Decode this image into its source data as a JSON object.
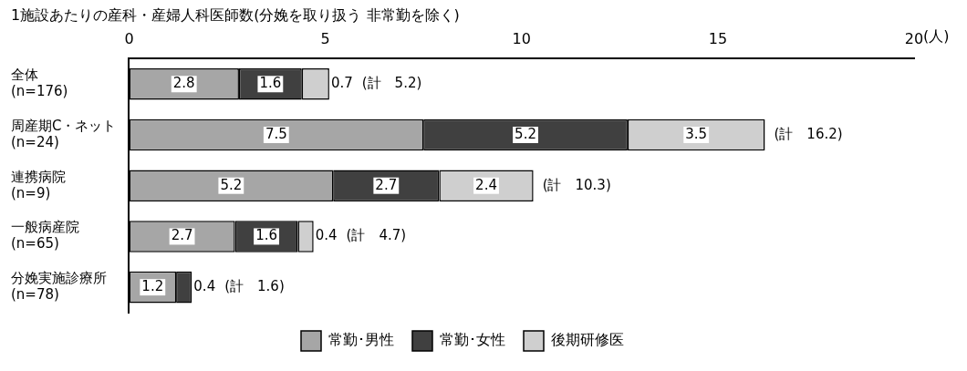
{
  "chart_data": {
    "type": "bar",
    "orientation": "horizontal",
    "stacked": true,
    "title": "1施設あたりの産科・産婦人科医師数(分娩を取り扱う 非常勤を除く)",
    "xlabel": "(人)",
    "categories": [
      "全体\n(n=176)",
      "周産期C・ネット\n(n=24)",
      "連携病院\n(n=9)",
      "一般病産院\n(n=65)",
      "分娩実施診療所\n(n=78)"
    ],
    "series": [
      {
        "name": "常勤･男性",
        "color": "#a6a6a6",
        "values": [
          2.8,
          7.5,
          5.2,
          2.7,
          1.2
        ]
      },
      {
        "name": "常勤･女性",
        "color": "#404040",
        "values": [
          1.6,
          5.2,
          2.7,
          1.6,
          0.4
        ]
      },
      {
        "name": "後期研修医",
        "color": "#cfcfcf",
        "values": [
          0.7,
          3.5,
          2.4,
          0.4,
          null
        ]
      }
    ],
    "totals": [
      "(計　5.2)",
      "(計　16.2)",
      "(計　10.3)",
      "(計　4.7)",
      "(計　1.6)"
    ],
    "xlim": [
      0,
      20
    ],
    "xticks": [
      0,
      5,
      10,
      15,
      20
    ],
    "data_labels": true,
    "grid": false,
    "legend": "bottom"
  }
}
